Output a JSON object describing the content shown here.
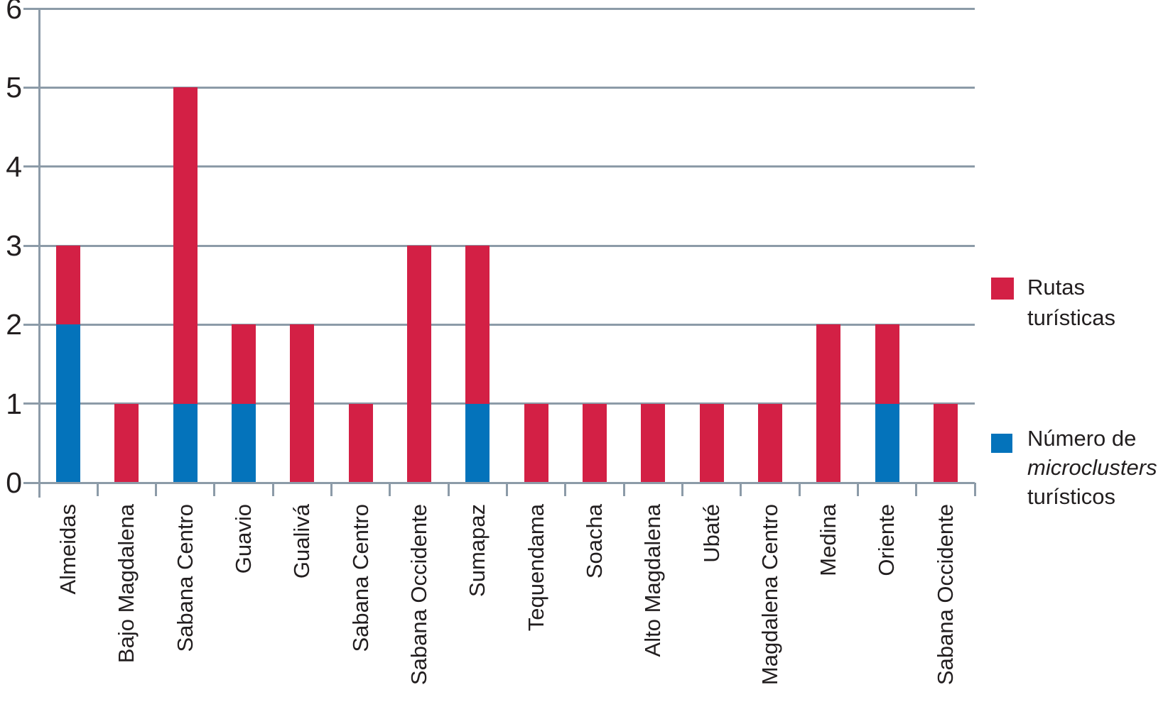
{
  "chart_data": {
    "type": "bar",
    "stacked": true,
    "orientation": "vertical",
    "title": "",
    "xlabel": "",
    "ylabel": "",
    "ylim": [
      0,
      6
    ],
    "yticks": [
      0,
      1,
      2,
      3,
      4,
      5,
      6
    ],
    "grid": true,
    "legend_position": "right",
    "categories": [
      "Almeidas",
      "Bajo Magdalena",
      "Sabana Centro",
      "Guavio",
      "Gualivá",
      "Sabana Centro",
      "Sabana Occidente",
      "Sumapaz",
      "Tequendama",
      "Soacha",
      "Alto Magdalena",
      "Ubaté",
      "Magdalena Centro",
      "Medina",
      "Oriente",
      "Sabana Occidente"
    ],
    "series": [
      {
        "id": "microclusters",
        "name": "Número de microclusters turísticos",
        "color": "#0473BB",
        "values": [
          2,
          0,
          1,
          1,
          0,
          0,
          0,
          1,
          0,
          0,
          0,
          0,
          0,
          0,
          1,
          0
        ]
      },
      {
        "id": "rutas",
        "name": "Rutas turísticas",
        "color": "#D32045",
        "values": [
          1,
          1,
          4,
          1,
          2,
          1,
          3,
          2,
          1,
          1,
          1,
          1,
          1,
          2,
          1,
          1
        ]
      }
    ],
    "totals": [
      3,
      1,
      5,
      2,
      2,
      1,
      3,
      3,
      1,
      1,
      1,
      1,
      1,
      2,
      2,
      1
    ],
    "legend": [
      {
        "id": "rutas",
        "color": "#D32045",
        "lines": [
          {
            "text": "Rutas",
            "italic": false
          },
          {
            "text": "turísticas",
            "italic": false
          }
        ]
      },
      {
        "id": "microclusters",
        "color": "#0473BB",
        "lines": [
          {
            "text": "Número de",
            "italic": false
          },
          {
            "text": "microclusters",
            "italic": true
          },
          {
            "text": "turísticos",
            "italic": false
          }
        ]
      }
    ]
  },
  "colors": {
    "rutas_red": "#D32045",
    "microclusters_blue": "#0473BB",
    "gridline": "#8C9BA8",
    "text": "#221E1F",
    "background": "#FFFFFF"
  }
}
